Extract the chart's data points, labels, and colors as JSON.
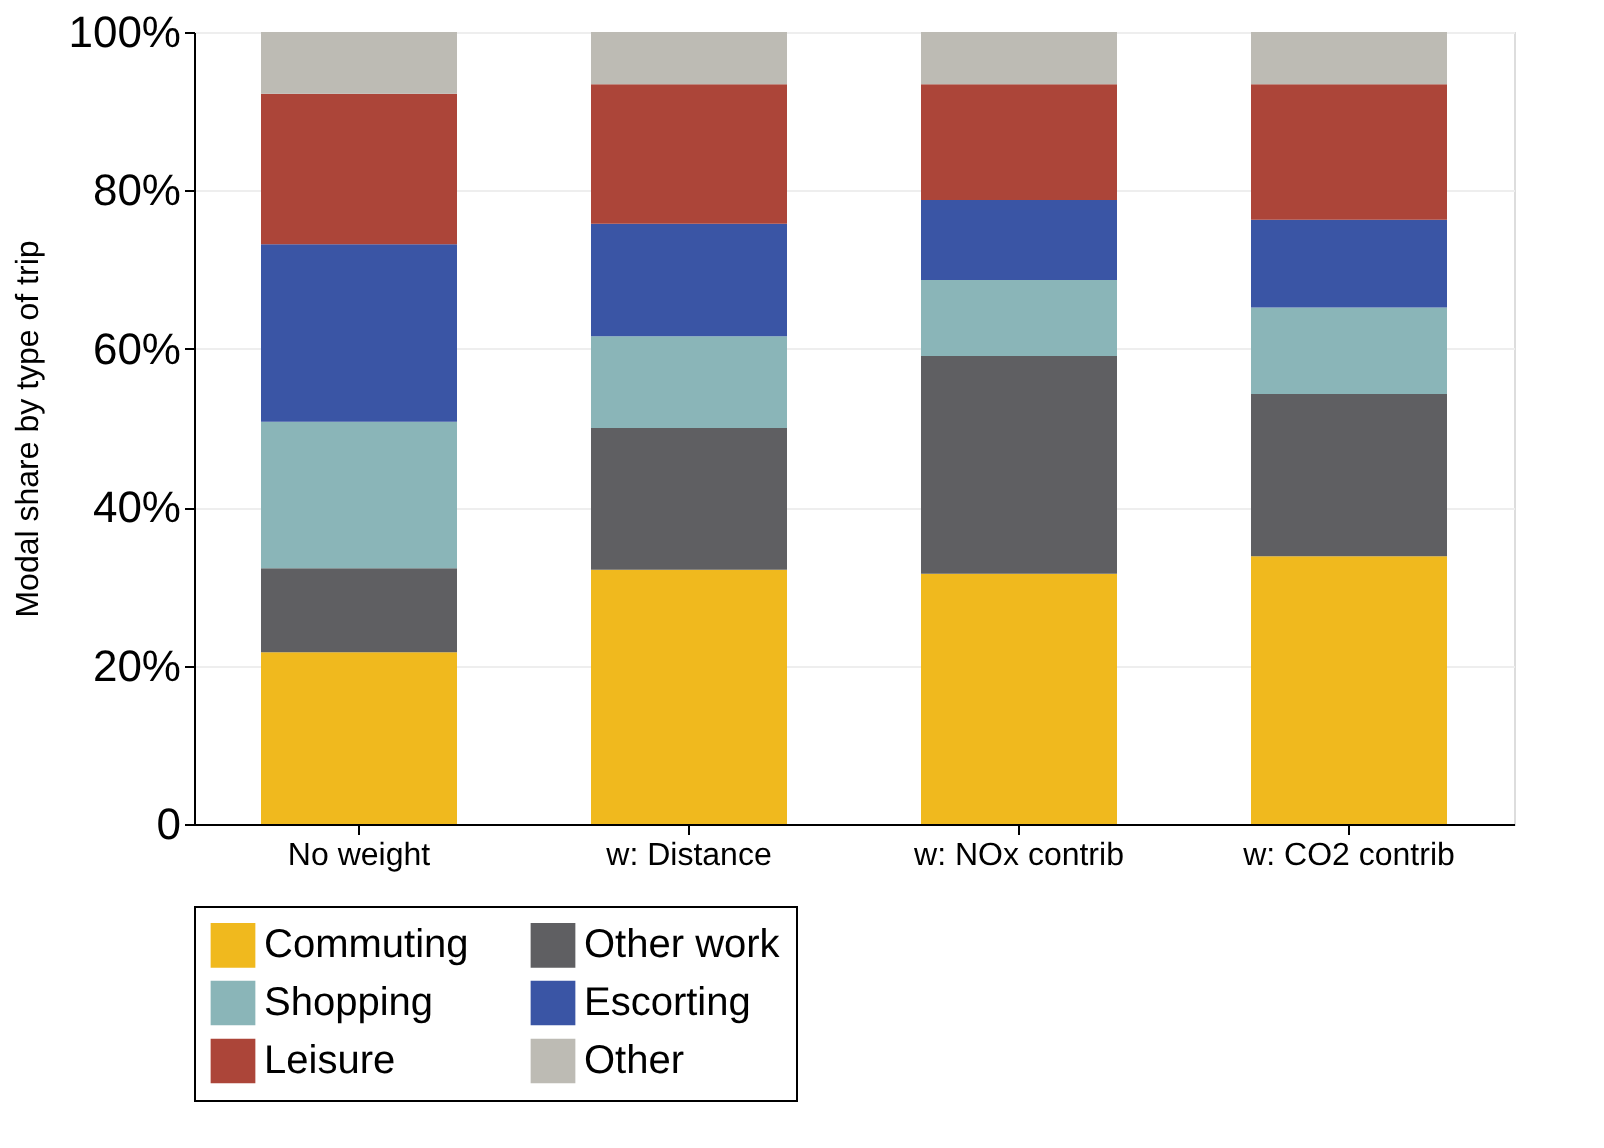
{
  "chart_data": {
    "type": "bar",
    "stacked": true,
    "ylabel": "Modal share by type of trip",
    "categories": [
      "No weight",
      "w: Distance",
      "w: NOx contrib",
      "w: CO2 contrib"
    ],
    "series": [
      {
        "name": "Commuting",
        "color": "#f0b91e",
        "values": [
          21.7,
          32.1,
          31.6,
          33.8
        ]
      },
      {
        "name": "Other work",
        "color": "#5f5f62",
        "values": [
          10.6,
          17.9,
          27.5,
          20.5
        ]
      },
      {
        "name": "Shopping",
        "color": "#8ab5b8",
        "values": [
          18.5,
          11.6,
          9.6,
          10.9
        ]
      },
      {
        "name": "Escorting",
        "color": "#3a55a5",
        "values": [
          22.4,
          14.2,
          10.1,
          11.1
        ]
      },
      {
        "name": "Leisure",
        "color": "#ac4539",
        "values": [
          19.0,
          17.6,
          14.6,
          17.1
        ]
      },
      {
        "name": "Other",
        "color": "#bdbbb4",
        "values": [
          7.8,
          6.6,
          6.6,
          6.6
        ]
      }
    ],
    "ylim": [
      0,
      100
    ],
    "yticks": [
      0,
      {
        "value": 20,
        "label": "20%"
      },
      {
        "value": 40,
        "label": "40%"
      },
      {
        "value": 60,
        "label": "60%"
      },
      {
        "value": 80,
        "label": "80%"
      },
      {
        "value": 100,
        "label": "100%"
      }
    ],
    "grid": "y",
    "legend": "bottom"
  }
}
